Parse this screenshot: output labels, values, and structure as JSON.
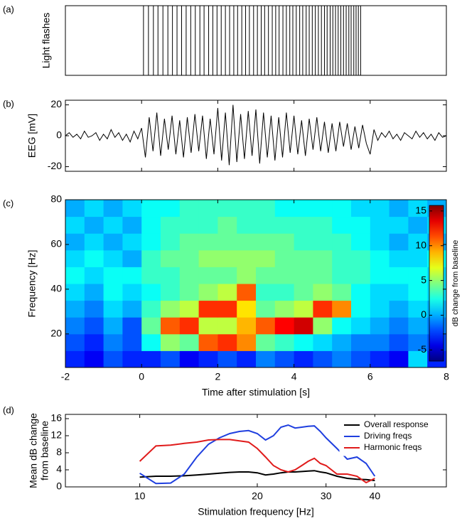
{
  "chart_data": [
    {
      "type": "raster",
      "panel_label": "(a)",
      "ylabel": "Light flashes",
      "xlim": [
        -2,
        8
      ],
      "color": "#000000",
      "events": [
        0.05,
        0.18,
        0.31,
        0.43,
        0.56,
        0.69,
        0.81,
        0.93,
        1.05,
        1.17,
        1.29,
        1.41,
        1.53,
        1.64,
        1.76,
        1.87,
        1.98,
        2.09,
        2.2,
        2.31,
        2.42,
        2.52,
        2.63,
        2.73,
        2.83,
        2.94,
        3.04,
        3.14,
        3.23,
        3.33,
        3.43,
        3.52,
        3.61,
        3.71,
        3.8,
        3.89,
        3.97,
        4.06,
        4.15,
        4.23,
        4.32,
        4.4,
        4.48,
        4.56,
        4.64,
        4.72,
        4.8,
        4.87,
        4.95,
        5.02,
        5.09,
        5.16,
        5.23,
        5.3,
        5.37,
        5.44,
        5.5,
        5.57,
        5.63,
        5.69,
        5.75
      ]
    },
    {
      "type": "line",
      "panel_label": "(b)",
      "ylabel": "EEG [mV]",
      "xlim": [
        -2,
        8
      ],
      "ylim": [
        -23,
        23
      ],
      "yticks": [
        -20,
        0,
        20
      ],
      "xticks": [
        -2,
        0,
        2,
        4,
        6,
        8
      ],
      "xtick_labels": false,
      "color": "#000000",
      "x": [
        -2,
        -1.9,
        -1.8,
        -1.7,
        -1.6,
        -1.5,
        -1.4,
        -1.3,
        -1.2,
        -1.1,
        -1,
        -0.9,
        -0.8,
        -0.7,
        -0.6,
        -0.5,
        -0.4,
        -0.3,
        -0.2,
        -0.1,
        0,
        0.1,
        0.2,
        0.3,
        0.4,
        0.5,
        0.6,
        0.7,
        0.8,
        0.9,
        1,
        1.1,
        1.2,
        1.3,
        1.4,
        1.5,
        1.6,
        1.7,
        1.8,
        1.9,
        2,
        2.1,
        2.2,
        2.3,
        2.4,
        2.5,
        2.6,
        2.7,
        2.8,
        2.9,
        3,
        3.1,
        3.2,
        3.3,
        3.4,
        3.5,
        3.6,
        3.7,
        3.8,
        3.9,
        4,
        4.1,
        4.2,
        4.3,
        4.4,
        4.5,
        4.6,
        4.7,
        4.8,
        4.9,
        5,
        5.1,
        5.2,
        5.3,
        5.4,
        5.5,
        5.6,
        5.7,
        5.8,
        5.9,
        6,
        6.1,
        6.2,
        6.3,
        6.4,
        6.5,
        6.6,
        6.7,
        6.8,
        6.9,
        7,
        7.1,
        7.2,
        7.3,
        7.4,
        7.5,
        7.6,
        7.7,
        7.8,
        7.9,
        8
      ],
      "values": [
        0,
        2,
        -1,
        1,
        -2,
        3,
        -1,
        0,
        2,
        -3,
        1,
        -2,
        4,
        -1,
        2,
        -3,
        1,
        -4,
        3,
        -2,
        5,
        -14,
        12,
        -10,
        15,
        -13,
        11,
        -9,
        13,
        -12,
        10,
        -14,
        12,
        -11,
        14,
        -10,
        13,
        -15,
        11,
        -12,
        18,
        -16,
        15,
        -19,
        20,
        -17,
        14,
        -15,
        16,
        -13,
        17,
        -18,
        15,
        -14,
        13,
        -16,
        12,
        -14,
        15,
        -11,
        13,
        -12,
        10,
        -13,
        11,
        -9,
        12,
        -10,
        9,
        -11,
        8,
        -10,
        9,
        -7,
        8,
        -9,
        6,
        -8,
        7,
        -5,
        -12,
        4,
        -3,
        2,
        -1,
        3,
        -2,
        1,
        -3,
        2,
        0,
        -2,
        3,
        -1,
        2,
        -2,
        1,
        -3,
        2,
        -1,
        0
      ]
    },
    {
      "type": "heatmap",
      "panel_label": "(c)",
      "ylabel": "Frequency [Hz]",
      "xlabel": "Time after stimulation [s]",
      "xlim": [
        -2,
        8
      ],
      "ylim": [
        5,
        80
      ],
      "xticks": [
        -2,
        0,
        2,
        4,
        6,
        8
      ],
      "yticks": [
        20,
        40,
        60,
        80
      ],
      "colormap": "jet",
      "clim": [
        -6.6,
        15.8
      ],
      "cticks": [
        -5,
        0,
        5,
        10,
        15
      ],
      "colorbar_label": "dB change from baseline",
      "x_edges": [
        -2,
        -1.5,
        -1,
        -0.5,
        0,
        0.5,
        1,
        1.5,
        2,
        2.5,
        3,
        3.5,
        4,
        4.5,
        5,
        5.5,
        6,
        6.5,
        7,
        7.5,
        8
      ],
      "y_edges": [
        5,
        12.5,
        20,
        27.5,
        35,
        42.5,
        50,
        57.5,
        65,
        72.5,
        80
      ],
      "z": [
        [
          -3,
          -4,
          -2,
          -3,
          -3,
          -2,
          -4,
          -3,
          -2,
          -3,
          -1,
          -2,
          -3,
          -2,
          -1,
          -2,
          -3,
          -4,
          1,
          -3
        ],
        [
          -2,
          -3,
          -1,
          -2,
          2,
          5,
          4,
          11,
          12,
          10,
          4,
          3,
          2,
          1,
          0,
          -1,
          -1,
          -2,
          -1,
          -2
        ],
        [
          -1,
          -2,
          0,
          -2,
          4,
          11,
          12,
          6,
          6,
          9,
          11,
          13,
          14,
          5,
          2,
          1,
          0,
          -1,
          0,
          -1
        ],
        [
          0,
          -1,
          1,
          0,
          3,
          5,
          6,
          12,
          12,
          8,
          4,
          5,
          6,
          12,
          10,
          2,
          1,
          0,
          1,
          0
        ],
        [
          1,
          0,
          2,
          1,
          2,
          3,
          4,
          5,
          6,
          11,
          3,
          3,
          4,
          5,
          4,
          2,
          1,
          1,
          2,
          1
        ],
        [
          2,
          1,
          2,
          2,
          3,
          3,
          4,
          4,
          4,
          5,
          4,
          4,
          4,
          4,
          3,
          3,
          2,
          2,
          2,
          1
        ],
        [
          1,
          2,
          1,
          0,
          3,
          4,
          4,
          5,
          5,
          5,
          5,
          4,
          4,
          4,
          3,
          3,
          2,
          1,
          1,
          2
        ],
        [
          0,
          1,
          0,
          1,
          2,
          3,
          4,
          4,
          4,
          4,
          4,
          4,
          3,
          3,
          3,
          2,
          1,
          0,
          1,
          0
        ],
        [
          1,
          0,
          1,
          0,
          2,
          3,
          3,
          3,
          4,
          3,
          3,
          3,
          3,
          3,
          2,
          2,
          1,
          1,
          0,
          1
        ],
        [
          0,
          1,
          0,
          1,
          2,
          2,
          3,
          3,
          3,
          3,
          3,
          2,
          2,
          2,
          2,
          1,
          1,
          0,
          1,
          0
        ]
      ]
    },
    {
      "type": "line",
      "panel_label": "(d)",
      "ylabel": [
        "Mean dB change",
        "from baseline"
      ],
      "xlabel": "Stimulation frequency [Hz]",
      "xscale": "log",
      "xlim": [
        6.45,
        61
      ],
      "ylim": [
        0,
        17
      ],
      "xticks": [
        10,
        20,
        30,
        40
      ],
      "yticks": [
        0,
        4,
        8,
        12,
        16
      ],
      "legend": "upper right",
      "x": [
        10,
        11,
        12,
        13,
        14,
        15,
        16,
        17,
        18,
        19,
        20,
        21,
        22,
        23,
        24,
        25,
        26,
        27,
        28,
        29,
        30,
        32,
        34,
        36,
        38,
        40
      ],
      "series": [
        {
          "name": "Overall response",
          "color": "#000000",
          "values": [
            2.3,
            2.5,
            2.5,
            2.6,
            2.8,
            3.0,
            3.2,
            3.4,
            3.5,
            3.5,
            3.3,
            2.8,
            3.0,
            3.3,
            3.5,
            3.5,
            3.6,
            3.7,
            3.8,
            3.5,
            3.3,
            2.5,
            2.0,
            1.8,
            1.7,
            1.5
          ]
        },
        {
          "name": "Driving freqs",
          "color": "#1f3fdf",
          "values": [
            3.2,
            0.8,
            0.9,
            3,
            7,
            10,
            11.5,
            12.5,
            13,
            13.2,
            12.5,
            11,
            12,
            14,
            14.5,
            13.8,
            14,
            14.2,
            14.3,
            13,
            11.5,
            9,
            6.5,
            7,
            5.5,
            2.5
          ]
        },
        {
          "name": "Harmonic freqs",
          "color": "#e01b1b",
          "values": [
            6,
            9.6,
            9.8,
            10.2,
            10.5,
            11,
            11.1,
            11.1,
            10.8,
            10.5,
            9,
            7,
            5,
            4,
            3.5,
            4,
            5,
            6,
            6.7,
            5.5,
            5,
            3,
            3,
            2.5,
            1,
            2
          ]
        }
      ]
    }
  ]
}
